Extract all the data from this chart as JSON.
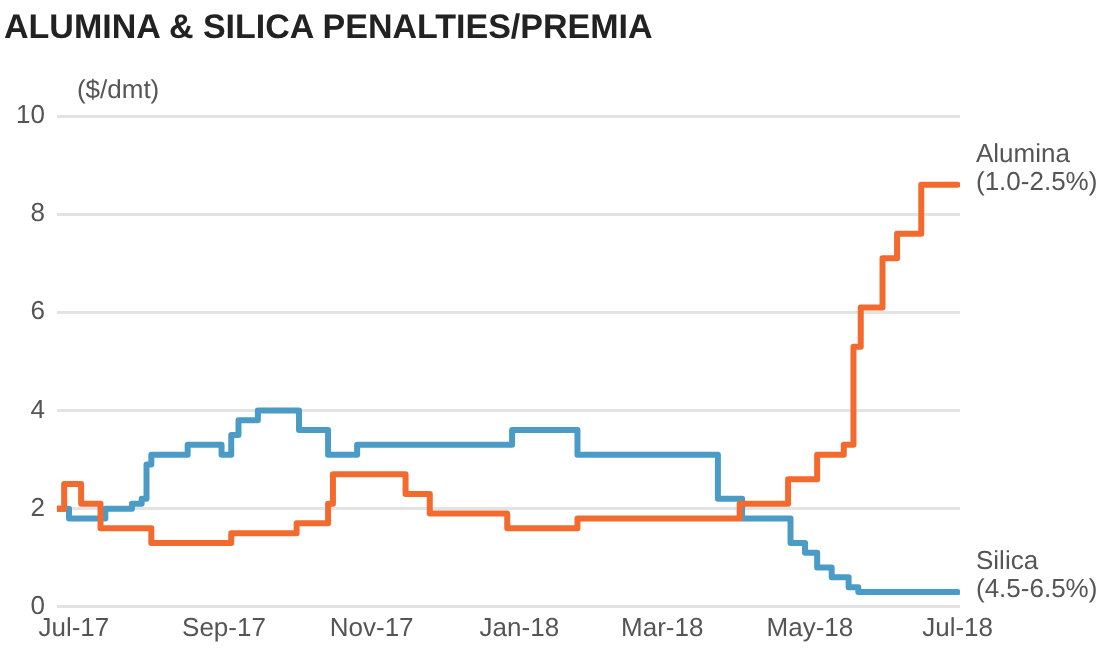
{
  "chart_data": {
    "type": "step",
    "title": "ALUMINA & SILICA PENALTIES/PREMIA",
    "ylabel": "($/dmt)",
    "xlim": [
      "2017-06-24",
      "2018-07-02"
    ],
    "xticks": [
      {
        "value": "2017-07-01",
        "label": "Jul-17"
      },
      {
        "value": "2017-09-01",
        "label": "Sep-17"
      },
      {
        "value": "2017-11-01",
        "label": "Nov-17"
      },
      {
        "value": "2018-01-01",
        "label": "Jan-18"
      },
      {
        "value": "2018-03-01",
        "label": "Mar-18"
      },
      {
        "value": "2018-05-01",
        "label": "May-18"
      },
      {
        "value": "2018-07-01",
        "label": "Jul-18"
      }
    ],
    "ylim": [
      0,
      10
    ],
    "yticks": [
      0,
      2,
      4,
      6,
      8,
      10
    ],
    "grid": "y",
    "marker": "none",
    "line_style": "solid",
    "series": [
      {
        "name": "Alumina (1.0-2.5%)",
        "color": "#f26a2e",
        "x": [
          "2017-06-24",
          "2017-06-27",
          "2017-07-04",
          "2017-07-12",
          "2017-08-02",
          "2017-09-04",
          "2017-10-01",
          "2017-10-14",
          "2017-10-16",
          "2017-11-15",
          "2017-11-25",
          "2017-12-27",
          "2018-01-25",
          "2018-04-02",
          "2018-04-22",
          "2018-05-04",
          "2018-05-15",
          "2018-05-19",
          "2018-05-22",
          "2018-05-31",
          "2018-06-06",
          "2018-06-16",
          "2018-07-01"
        ],
        "values": [
          2.0,
          2.5,
          2.1,
          1.6,
          1.3,
          1.5,
          1.7,
          2.1,
          2.7,
          2.3,
          1.9,
          1.6,
          1.8,
          2.1,
          2.6,
          3.1,
          3.3,
          5.3,
          6.1,
          7.1,
          7.6,
          8.6,
          8.6
        ]
      },
      {
        "name": "Silica (4.5-6.5%)",
        "color": "#4a9cc7",
        "x": [
          "2017-06-24",
          "2017-06-29",
          "2017-07-14",
          "2017-07-25",
          "2017-07-29",
          "2017-07-31",
          "2017-08-02",
          "2017-08-17",
          "2017-08-31",
          "2017-09-04",
          "2017-09-07",
          "2017-09-15",
          "2017-10-02",
          "2017-10-14",
          "2017-10-26",
          "2017-12-29",
          "2018-01-25",
          "2018-03-24",
          "2018-04-03",
          "2018-04-23",
          "2018-04-29",
          "2018-05-04",
          "2018-05-10",
          "2018-05-17",
          "2018-05-21",
          "2018-07-01"
        ],
        "values": [
          2.0,
          1.8,
          2.0,
          2.1,
          2.2,
          2.9,
          3.1,
          3.3,
          3.1,
          3.5,
          3.8,
          4.0,
          3.6,
          3.1,
          3.3,
          3.6,
          3.1,
          2.2,
          1.8,
          1.3,
          1.1,
          0.8,
          0.6,
          0.4,
          0.3,
          0.3
        ]
      }
    ]
  }
}
